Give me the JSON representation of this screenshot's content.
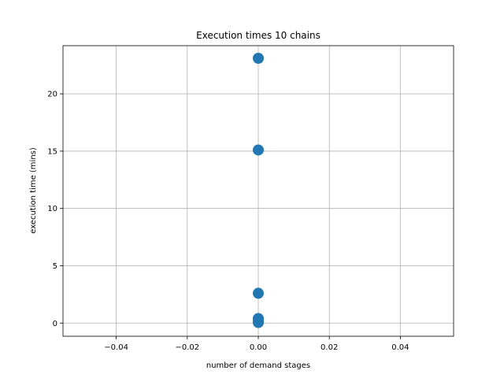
{
  "chart_data": {
    "type": "scatter",
    "title": "Execution times 10 chains",
    "xlabel": "number of demand stages",
    "ylabel": "execution time (mins)",
    "xlim": [
      -0.055,
      0.055
    ],
    "ylim": [
      -1.15,
      24.2
    ],
    "xticks": [
      -0.04,
      -0.02,
      0.0,
      0.02,
      0.04
    ],
    "xtick_labels": [
      "−0.04",
      "−0.02",
      "0.00",
      "0.02",
      "0.04"
    ],
    "yticks": [
      0,
      5,
      10,
      15,
      20
    ],
    "ytick_labels": [
      "0",
      "5",
      "10",
      "15",
      "20"
    ],
    "grid": true,
    "marker_color": "#1f77b4",
    "series": [
      {
        "points": [
          {
            "x": 0,
            "y": 23.1
          },
          {
            "x": 0,
            "y": 15.1
          },
          {
            "x": 0,
            "y": 2.6
          },
          {
            "x": 0,
            "y": 0.4
          },
          {
            "x": 0,
            "y": 0.2
          },
          {
            "x": 0,
            "y": 0.05
          }
        ]
      }
    ]
  }
}
